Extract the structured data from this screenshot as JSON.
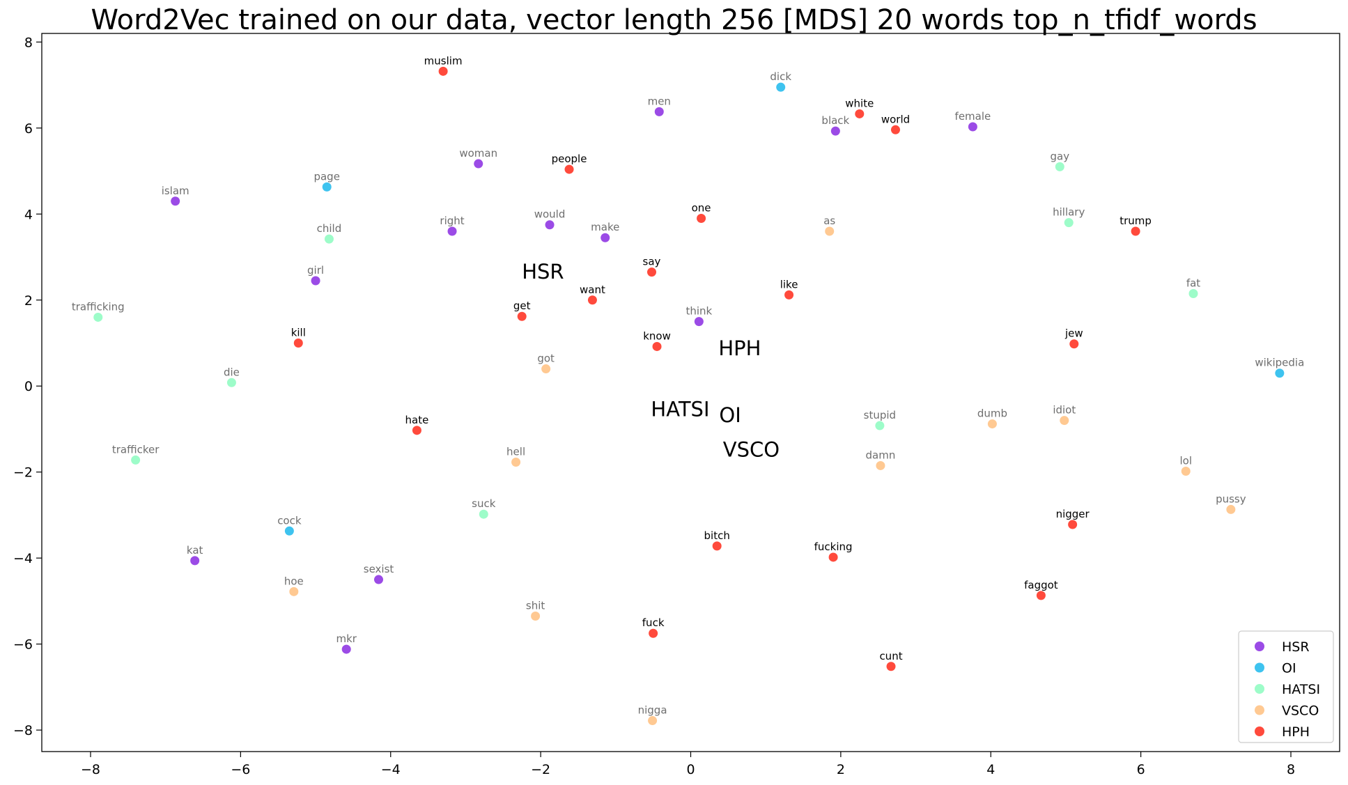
{
  "chart_data": {
    "type": "scatter",
    "title": "Word2Vec trained on our data, vector length 256 [MDS] 20 words top_n_tfidf_words",
    "xlabel": "",
    "ylabel": "",
    "xlim": [
      -8.65,
      8.65
    ],
    "ylim": [
      -8.5,
      8.2
    ],
    "xticks": [
      -8,
      -6,
      -4,
      -2,
      0,
      2,
      4,
      6,
      8
    ],
    "yticks": [
      -8,
      -6,
      -4,
      -2,
      0,
      2,
      4,
      6,
      8
    ],
    "grid": false,
    "legend_position": "bottom-right",
    "series": [
      {
        "name": "HSR",
        "color": "#8a2be2",
        "points": [
          {
            "label": "men",
            "x": -0.42,
            "y": 6.38
          },
          {
            "label": "black",
            "x": 1.93,
            "y": 5.93
          },
          {
            "label": "female",
            "x": 3.76,
            "y": 6.03
          },
          {
            "label": "woman",
            "x": -2.83,
            "y": 5.17
          },
          {
            "label": "islam",
            "x": -6.87,
            "y": 4.3
          },
          {
            "label": "right",
            "x": -3.18,
            "y": 3.6
          },
          {
            "label": "would",
            "x": -1.88,
            "y": 3.75
          },
          {
            "label": "make",
            "x": -1.14,
            "y": 3.45
          },
          {
            "label": "girl",
            "x": -5.0,
            "y": 2.45
          },
          {
            "label": "think",
            "x": 0.11,
            "y": 1.5
          },
          {
            "label": "kat",
            "x": -6.61,
            "y": -4.06
          },
          {
            "label": "sexist",
            "x": -4.16,
            "y": -4.5
          },
          {
            "label": "mkr",
            "x": -4.59,
            "y": -6.12
          }
        ]
      },
      {
        "name": "OI",
        "color": "#1cb8ec",
        "points": [
          {
            "label": "dick",
            "x": 1.2,
            "y": 6.95
          },
          {
            "label": "page",
            "x": -4.85,
            "y": 4.63
          },
          {
            "label": "wikipedia",
            "x": 7.85,
            "y": 0.3
          },
          {
            "label": "cock",
            "x": -5.35,
            "y": -3.37
          }
        ]
      },
      {
        "name": "HATSI",
        "color": "#8cfcc0",
        "points": [
          {
            "label": "gay",
            "x": 4.92,
            "y": 5.1
          },
          {
            "label": "child",
            "x": -4.82,
            "y": 3.42
          },
          {
            "label": "hillary",
            "x": 5.04,
            "y": 3.8
          },
          {
            "label": "trafficking",
            "x": -7.9,
            "y": 1.6
          },
          {
            "label": "fat",
            "x": 6.7,
            "y": 2.15
          },
          {
            "label": "die",
            "x": -6.12,
            "y": 0.08
          },
          {
            "label": "stupid",
            "x": 2.52,
            "y": -0.92
          },
          {
            "label": "trafficker",
            "x": -7.4,
            "y": -1.72
          },
          {
            "label": "suck",
            "x": -2.76,
            "y": -2.98
          }
        ]
      },
      {
        "name": "VSCO",
        "color": "#ffbf7f",
        "points": [
          {
            "label": "as",
            "x": 1.85,
            "y": 3.6
          },
          {
            "label": "got",
            "x": -1.93,
            "y": 0.4
          },
          {
            "label": "dumb",
            "x": 4.02,
            "y": -0.88
          },
          {
            "label": "idiot",
            "x": 4.98,
            "y": -0.8
          },
          {
            "label": "hell",
            "x": -2.33,
            "y": -1.77
          },
          {
            "label": "damn",
            "x": 2.53,
            "y": -1.85
          },
          {
            "label": "lol",
            "x": 6.6,
            "y": -1.98
          },
          {
            "label": "pussy",
            "x": 7.2,
            "y": -2.87
          },
          {
            "label": "hoe",
            "x": -5.29,
            "y": -4.78
          },
          {
            "label": "shit",
            "x": -2.07,
            "y": -5.35
          },
          {
            "label": "nigga",
            "x": -0.51,
            "y": -7.78
          }
        ]
      },
      {
        "name": "HPH",
        "color": "#ff2a1a",
        "points": [
          {
            "label": "muslim",
            "x": -3.3,
            "y": 7.32
          },
          {
            "label": "white",
            "x": 2.25,
            "y": 6.33
          },
          {
            "label": "world",
            "x": 2.73,
            "y": 5.96
          },
          {
            "label": "people",
            "x": -1.62,
            "y": 5.04
          },
          {
            "label": "one",
            "x": 0.14,
            "y": 3.9
          },
          {
            "label": "trump",
            "x": 5.93,
            "y": 3.6
          },
          {
            "label": "say",
            "x": -0.52,
            "y": 2.65
          },
          {
            "label": "want",
            "x": -1.31,
            "y": 2.0
          },
          {
            "label": "like",
            "x": 1.31,
            "y": 2.12
          },
          {
            "label": "get",
            "x": -2.25,
            "y": 1.62
          },
          {
            "label": "kill",
            "x": -5.23,
            "y": 1.0
          },
          {
            "label": "know",
            "x": -0.45,
            "y": 0.92
          },
          {
            "label": "jew",
            "x": 5.11,
            "y": 0.98
          },
          {
            "label": "hate",
            "x": -3.65,
            "y": -1.03
          },
          {
            "label": "nigger",
            "x": 5.09,
            "y": -3.22
          },
          {
            "label": "bitch",
            "x": 0.35,
            "y": -3.72
          },
          {
            "label": "fucking",
            "x": 1.9,
            "y": -3.98
          },
          {
            "label": "faggot",
            "x": 4.67,
            "y": -4.87
          },
          {
            "label": "fuck",
            "x": -0.5,
            "y": -5.75
          },
          {
            "label": "cunt",
            "x": 2.67,
            "y": -6.52
          }
        ]
      }
    ],
    "annotations": [
      {
        "text": "HSR",
        "x": -2.25,
        "y": 2.5
      },
      {
        "text": "HPH",
        "x": 0.37,
        "y": 0.72
      },
      {
        "text": "HATSI",
        "x": -0.53,
        "y": -0.7
      },
      {
        "text": "OI",
        "x": 0.38,
        "y": -0.84
      },
      {
        "text": "VSCO",
        "x": 0.43,
        "y": -1.64
      }
    ],
    "legend": [
      "HSR",
      "OI",
      "HATSI",
      "VSCO",
      "HPH"
    ]
  }
}
